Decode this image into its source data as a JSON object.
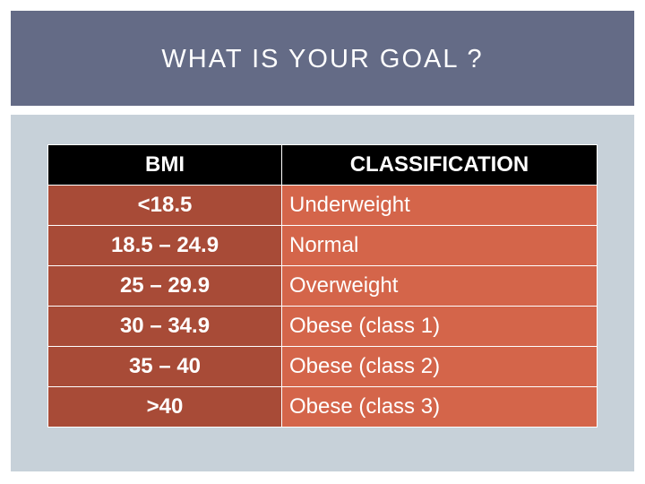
{
  "slide": {
    "title": "WHAT IS YOUR GOAL ?"
  },
  "table": {
    "headers": [
      "BMI",
      "CLASSIFICATION"
    ],
    "rows": [
      {
        "bmi": "<18.5",
        "classification": "Underweight"
      },
      {
        "bmi": "18.5 – 24.9",
        "classification": "Normal"
      },
      {
        "bmi": "25 – 29.9",
        "classification": "Overweight"
      },
      {
        "bmi": "30 – 34.9",
        "classification": "Obese (class 1)"
      },
      {
        "bmi": "35 – 40",
        "classification": "Obese (class 2)"
      },
      {
        "bmi": ">40",
        "classification": "Obese (class 3)"
      }
    ]
  },
  "colors": {
    "title_bar": "#646b86",
    "panel": "#c7d1d9",
    "header_bg": "#000000",
    "bmi_col_bg": "#a84b37",
    "class_col_bg": "#d4654a"
  }
}
